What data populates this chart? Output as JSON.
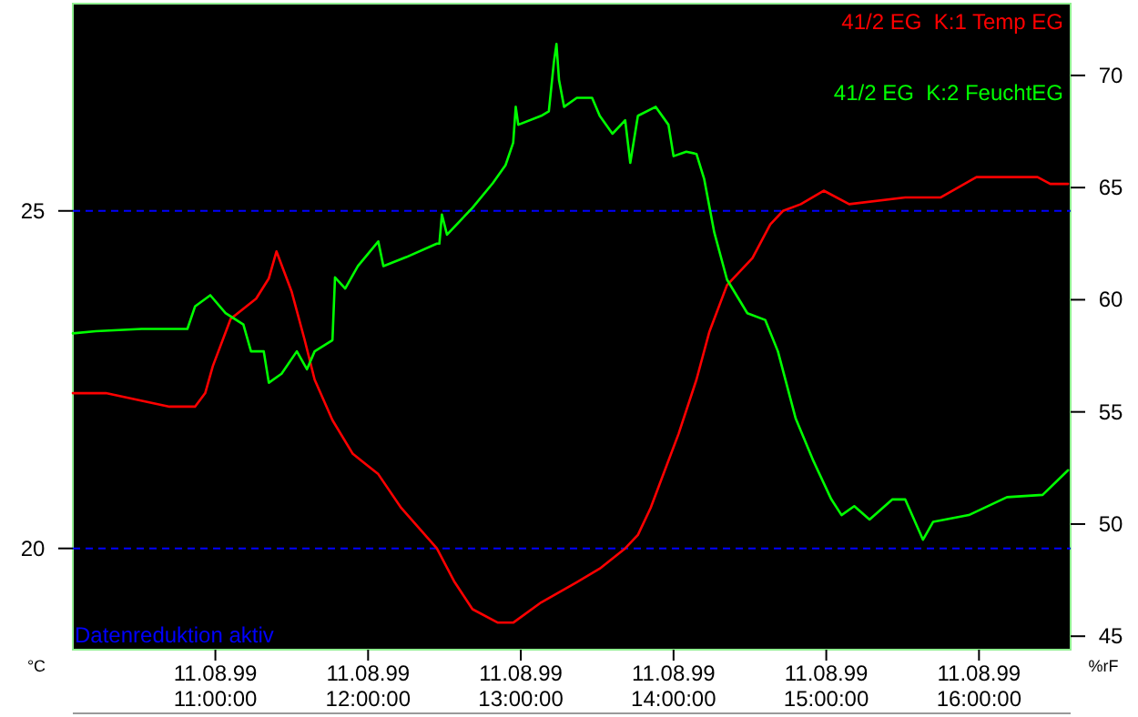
{
  "chart_data": {
    "type": "line",
    "ylabel": "°C",
    "y2label": "%rF",
    "annotations": [
      "Datenreduktion aktiv"
    ],
    "xlim": [
      "1999-08-11T10:04",
      "1999-08-11T16:36"
    ],
    "ylim": [
      18.5,
      28.07
    ],
    "y2lim": [
      44.4,
      73.2
    ],
    "xticks": [
      {
        "value": "1999-08-11T11:00",
        "label": "11.08.99\n11:00:00"
      },
      {
        "value": "1999-08-11T12:00",
        "label": "11.08.99\n12:00:00"
      },
      {
        "value": "1999-08-11T13:00",
        "label": "11.08.99\n13:00:00"
      },
      {
        "value": "1999-08-11T14:00",
        "label": "11.08.99\n14:00:00"
      },
      {
        "value": "1999-08-11T15:00",
        "label": "11.08.99\n15:00:00"
      },
      {
        "value": "1999-08-11T16:00",
        "label": "11.08.99\n16:00:00"
      }
    ],
    "yticks": [
      20,
      25
    ],
    "y2ticks": [
      45,
      50,
      55,
      60,
      65,
      70
    ],
    "ref_lines": [
      {
        "axis": "y",
        "value": 25,
        "color": "#0000ff",
        "line_style": "dashed"
      },
      {
        "axis": "y",
        "value": 20,
        "color": "#0000ff",
        "line_style": "dashed"
      }
    ],
    "legend": "top right",
    "line_style": "solid",
    "marker": "none",
    "series": [
      {
        "name": "41/2 EG  K:1 Temp EG",
        "color": "#ff0000",
        "axis": "y",
        "x": [
          "1999-08-11T10:04",
          "1999-08-11T10:17",
          "1999-08-11T10:42",
          "1999-08-11T10:52",
          "1999-08-11T10:56",
          "1999-08-11T10:59",
          "1999-08-11T11:06",
          "1999-08-11T11:16",
          "1999-08-11T11:21",
          "1999-08-11T11:24",
          "1999-08-11T11:30",
          "1999-08-11T11:35",
          "1999-08-11T11:39",
          "1999-08-11T11:46",
          "1999-08-11T11:54",
          "1999-08-11T12:04",
          "1999-08-11T12:13",
          "1999-08-11T12:20",
          "1999-08-11T12:27",
          "1999-08-11T12:34",
          "1999-08-11T12:41",
          "1999-08-11T12:51",
          "1999-08-11T12:57",
          "1999-08-11T13:08",
          "1999-08-11T13:22",
          "1999-08-11T13:31",
          "1999-08-11T13:41",
          "1999-08-11T13:46",
          "1999-08-11T13:51",
          "1999-08-11T13:58",
          "1999-08-11T14:02",
          "1999-08-11T14:09",
          "1999-08-11T14:14",
          "1999-08-11T14:21",
          "1999-08-11T14:31",
          "1999-08-11T14:38",
          "1999-08-11T14:43",
          "1999-08-11T14:50",
          "1999-08-11T14:59",
          "1999-08-11T15:09",
          "1999-08-11T15:31",
          "1999-08-11T15:45",
          "1999-08-11T15:59",
          "1999-08-11T16:23",
          "1999-08-11T16:28",
          "1999-08-11T16:35"
        ],
        "values": [
          22.3,
          22.3,
          22.1,
          22.1,
          22.3,
          22.7,
          23.4,
          23.7,
          24.0,
          24.4,
          23.8,
          23.1,
          22.5,
          21.9,
          21.4,
          21.1,
          20.6,
          20.3,
          20.0,
          19.5,
          19.1,
          18.9,
          18.9,
          19.2,
          19.5,
          19.7,
          20.0,
          20.2,
          20.6,
          21.3,
          21.7,
          22.5,
          23.2,
          23.9,
          24.3,
          24.8,
          25.0,
          25.1,
          25.3,
          25.1,
          25.2,
          25.2,
          25.5,
          25.5,
          25.4,
          25.4
        ]
      },
      {
        "name": "41/2 EG  K:2 FeuchtEG",
        "color": "#00ff00",
        "axis": "y2",
        "x": [
          "1999-08-11T10:04",
          "1999-08-11T10:13",
          "1999-08-11T10:31",
          "1999-08-11T10:49",
          "1999-08-11T10:52",
          "1999-08-11T10:58",
          "1999-08-11T11:04",
          "1999-08-11T11:11",
          "1999-08-11T11:14",
          "1999-08-11T11:19",
          "1999-08-11T11:21",
          "1999-08-11T11:26",
          "1999-08-11T11:32",
          "1999-08-11T11:36",
          "1999-08-11T11:39",
          "1999-08-11T11:46",
          "1999-08-11T11:47",
          "1999-08-11T11:51",
          "1999-08-11T11:56",
          "1999-08-11T12:04",
          "1999-08-11T12:06",
          "1999-08-11T12:15",
          "1999-08-11T12:27",
          "1999-08-11T12:28",
          "1999-08-11T12:29",
          "1999-08-11T12:31",
          "1999-08-11T12:41",
          "1999-08-11T12:49",
          "1999-08-11T12:54",
          "1999-08-11T12:57",
          "1999-08-11T12:58",
          "1999-08-11T12:59",
          "1999-08-11T13:08",
          "1999-08-11T13:11",
          "1999-08-11T13:13",
          "1999-08-11T13:14",
          "1999-08-11T13:15",
          "1999-08-11T13:17",
          "1999-08-11T13:22",
          "1999-08-11T13:28",
          "1999-08-11T13:31",
          "1999-08-11T13:36",
          "1999-08-11T13:41",
          "1999-08-11T13:43",
          "1999-08-11T13:46",
          "1999-08-11T13:53",
          "1999-08-11T13:58",
          "1999-08-11T14:00",
          "1999-08-11T14:05",
          "1999-08-11T14:09",
          "1999-08-11T14:12",
          "1999-08-11T14:16",
          "1999-08-11T14:21",
          "1999-08-11T14:29",
          "1999-08-11T14:36",
          "1999-08-11T14:41",
          "1999-08-11T14:48",
          "1999-08-11T14:55",
          "1999-08-11T15:02",
          "1999-08-11T15:06",
          "1999-08-11T15:11",
          "1999-08-11T15:17",
          "1999-08-11T15:26",
          "1999-08-11T15:31",
          "1999-08-11T15:38",
          "1999-08-11T15:42",
          "1999-08-11T15:56",
          "1999-08-11T16:11",
          "1999-08-11T16:25",
          "1999-08-11T16:35"
        ],
        "values": [
          58.5,
          58.6,
          58.7,
          58.7,
          59.7,
          60.2,
          59.4,
          58.9,
          57.7,
          57.7,
          56.3,
          56.7,
          57.7,
          56.9,
          57.7,
          58.2,
          61.0,
          60.5,
          61.5,
          62.6,
          61.5,
          61.9,
          62.5,
          62.5,
          63.8,
          62.9,
          64.1,
          65.2,
          66.0,
          67.0,
          68.6,
          67.8,
          68.2,
          68.4,
          70.6,
          71.4,
          69.8,
          68.6,
          69.0,
          69.0,
          68.2,
          67.4,
          68.0,
          66.1,
          68.2,
          68.6,
          67.8,
          66.4,
          66.6,
          66.5,
          65.4,
          63.0,
          60.9,
          59.4,
          59.1,
          57.7,
          54.7,
          52.8,
          51.1,
          50.4,
          50.8,
          50.2,
          51.1,
          51.1,
          49.3,
          50.1,
          50.4,
          51.2,
          51.3,
          52.4
        ]
      }
    ]
  }
}
